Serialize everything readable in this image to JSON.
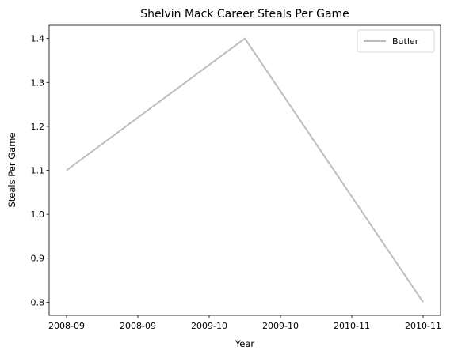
{
  "chart_data": {
    "type": "line",
    "title": "Shelvin Mack Career Steals Per Game",
    "xlabel": "Year",
    "ylabel": "Steals Per Game",
    "x_tick_labels": [
      "2008-09",
      "2008-09",
      "2009-10",
      "2009-10",
      "2010-11",
      "2010-11"
    ],
    "x_categories": [
      "2008-09",
      "2009-10",
      "2010-11"
    ],
    "ylim": [
      0.77,
      1.43
    ],
    "y_ticks": [
      0.8,
      0.9,
      1.0,
      1.1,
      1.2,
      1.3,
      1.4
    ],
    "y_tick_labels": [
      "0.8",
      "0.9",
      "1.0",
      "1.1",
      "1.2",
      "1.3",
      "1.4"
    ],
    "grid": false,
    "legend_position": "top-right",
    "series": [
      {
        "name": "Butler",
        "color": "#bdbdbd",
        "x": [
          "2008-09",
          "2009-10",
          "2010-11"
        ],
        "values": [
          1.1,
          1.4,
          0.8
        ]
      }
    ]
  }
}
